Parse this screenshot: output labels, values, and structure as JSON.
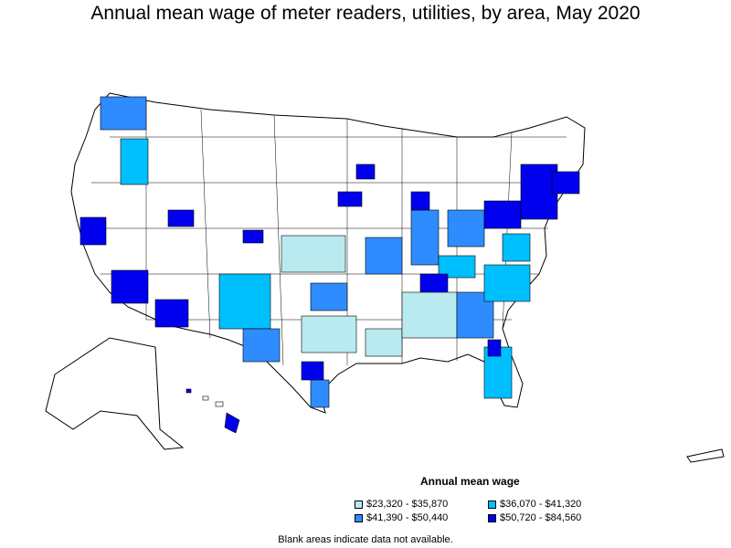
{
  "title": "Annual mean wage of meter readers, utilities, by area, May 2020",
  "legend": {
    "title": "Annual mean wage",
    "items": [
      {
        "label": "$23,320 - $35,870",
        "color": "#b8eaf0"
      },
      {
        "label": "$36,070 - $41,320",
        "color": "#00bfff"
      },
      {
        "label": "$41,390 - $50,440",
        "color": "#2f8cff"
      },
      {
        "label": "$50,720 - $84,560",
        "color": "#0000ee"
      }
    ]
  },
  "footnote": "Blank areas indicate data not available.",
  "colors": {
    "blank": "#ffffff",
    "boundary": "#000000"
  }
}
